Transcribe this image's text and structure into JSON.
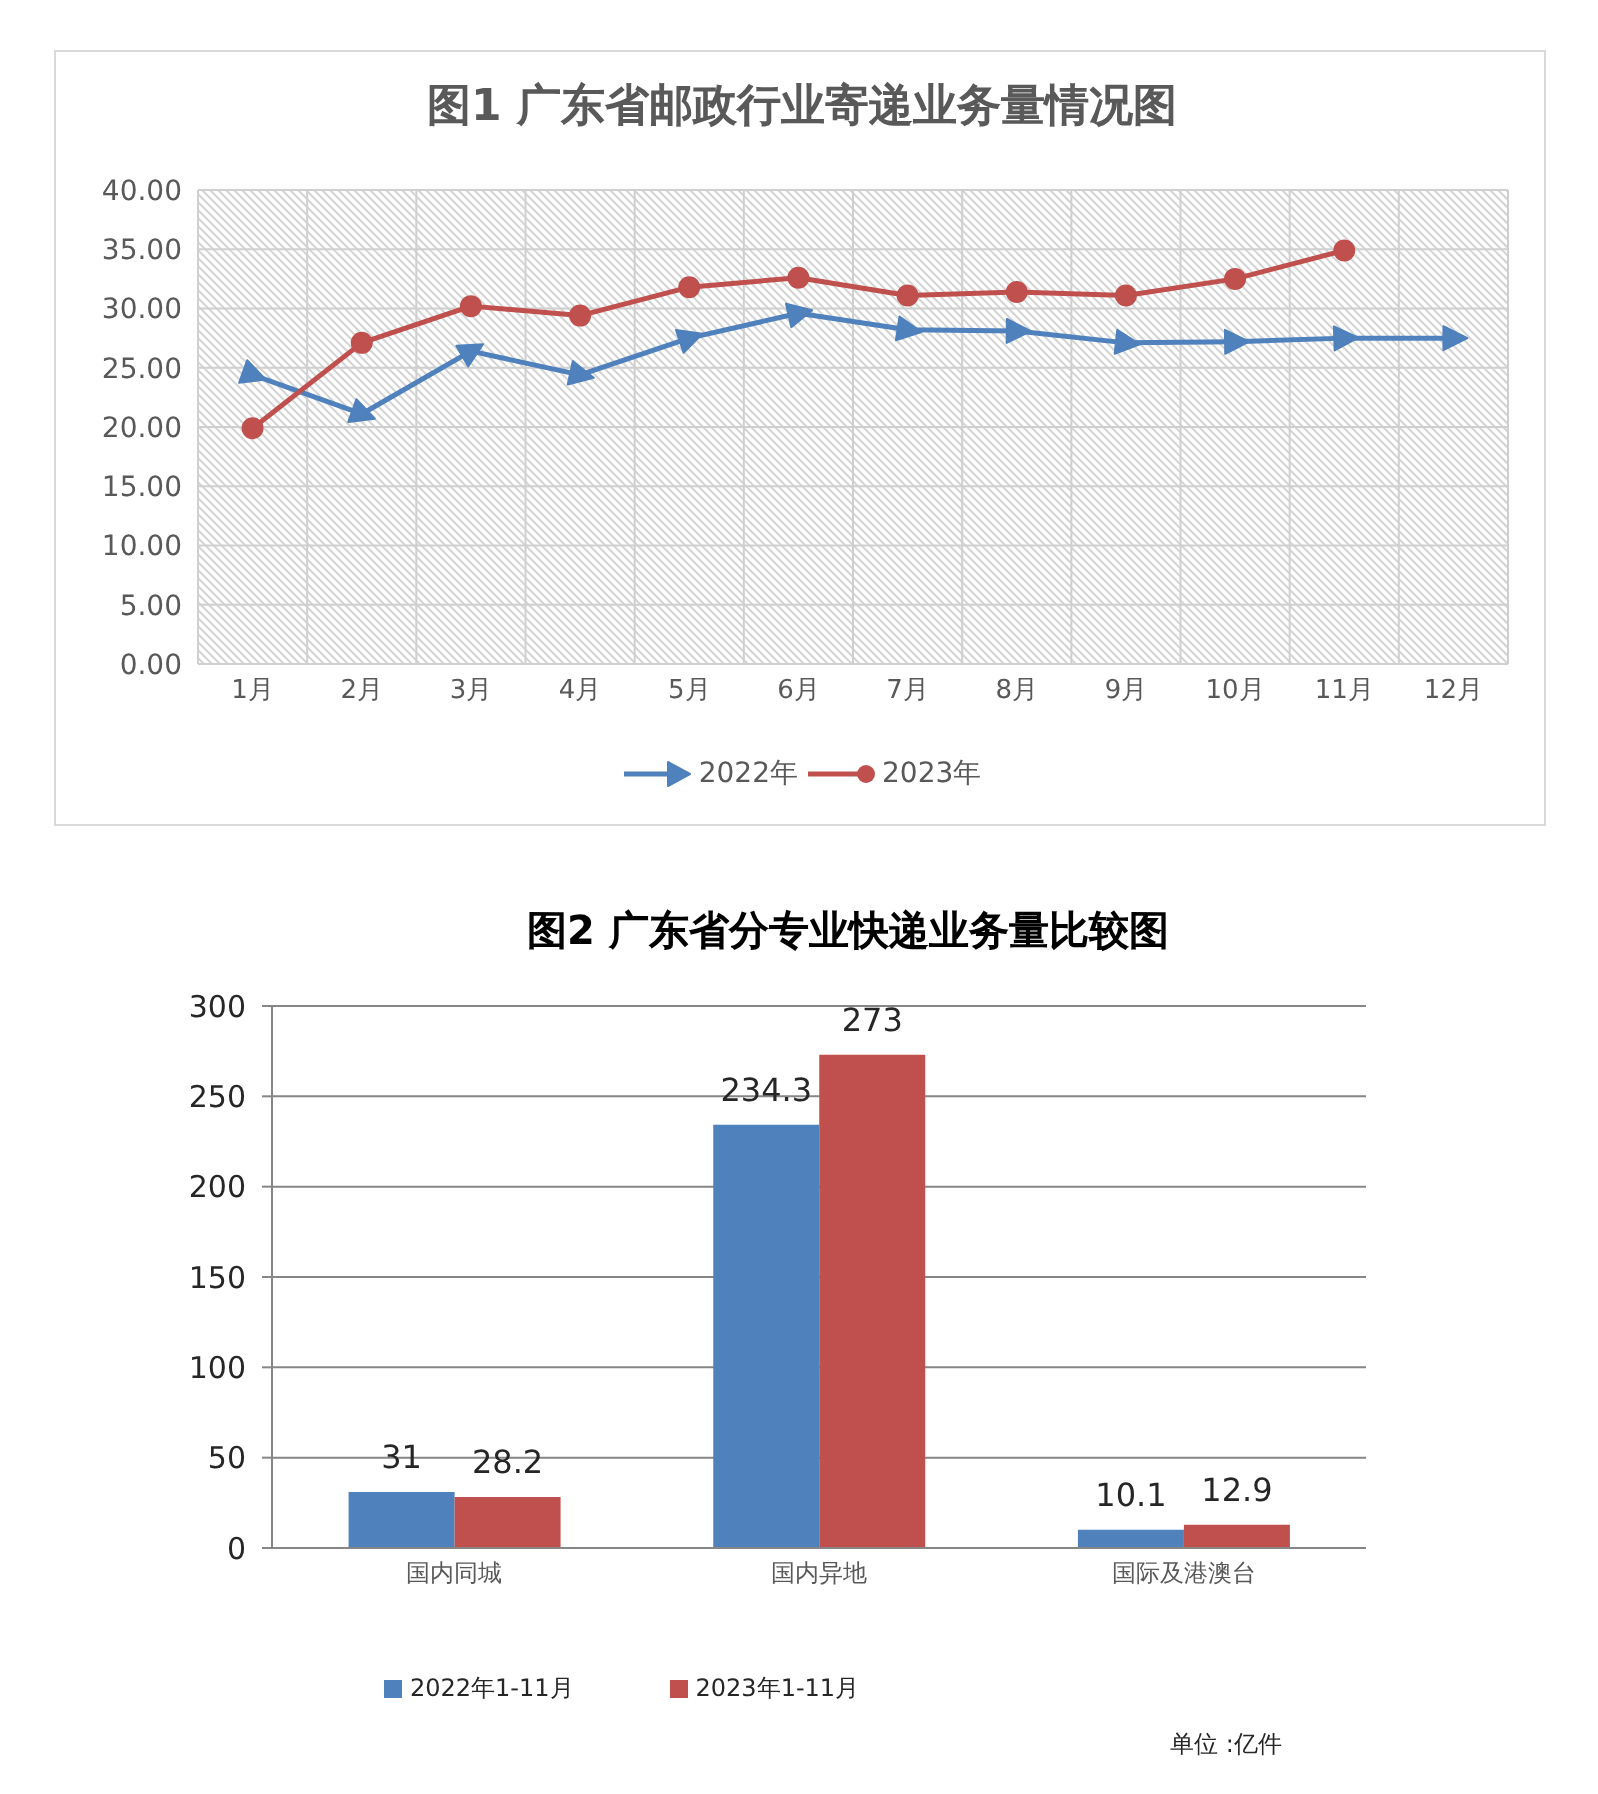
{
  "chart_data": [
    {
      "type": "line",
      "title": "图1 广东省邮政行业寄递业务量情况图",
      "categories": [
        "1月",
        "2月",
        "3月",
        "4月",
        "5月",
        "6月",
        "7月",
        "8月",
        "9月",
        "10月",
        "11月",
        "12月"
      ],
      "series": [
        {
          "name": "2022年",
          "color": "#4f81bd",
          "marker": "triangle",
          "values": [
            24.4,
            21.1,
            26.4,
            24.4,
            27.5,
            29.6,
            28.2,
            28.1,
            27.1,
            27.2,
            27.5,
            27.5
          ]
        },
        {
          "name": "2023年",
          "color": "#c0504d",
          "marker": "circle",
          "values": [
            19.9,
            27.1,
            30.2,
            29.4,
            31.8,
            32.6,
            31.1,
            31.4,
            31.1,
            32.5,
            34.9,
            null
          ]
        }
      ],
      "ylim": [
        0,
        40
      ],
      "yticks": [
        {
          "value": 0,
          "label": "0.00"
        },
        {
          "value": 5,
          "label": "5.00"
        },
        {
          "value": 10,
          "label": "10.00"
        },
        {
          "value": 15,
          "label": "15.00"
        },
        {
          "value": 20,
          "label": "20.00"
        },
        {
          "value": 25,
          "label": "25.00"
        },
        {
          "value": 30,
          "label": "30.00"
        },
        {
          "value": 35,
          "label": "35.00"
        },
        {
          "value": 40,
          "label": "40.00"
        }
      ],
      "grid": true,
      "legend": "bottom",
      "line_style": "solid"
    },
    {
      "type": "bar",
      "title": "图2 广东省分专业快递业务量比较图",
      "categories": [
        "国内同城",
        "国内异地",
        "国际及港澳台"
      ],
      "series": [
        {
          "name": "2022年1-11月",
          "color": "#4f81bd",
          "values": [
            31,
            234.3,
            10.1
          ]
        },
        {
          "name": "2023年1-11月",
          "color": "#c0504d",
          "values": [
            28.2,
            273,
            12.9
          ]
        }
      ],
      "ylim": [
        0,
        300
      ],
      "yticks": [
        0,
        50,
        100,
        150,
        200,
        250,
        300
      ],
      "grid": "y",
      "legend": "bottom",
      "data_labels": true,
      "annotations": [
        "单位 :亿件"
      ]
    }
  ]
}
